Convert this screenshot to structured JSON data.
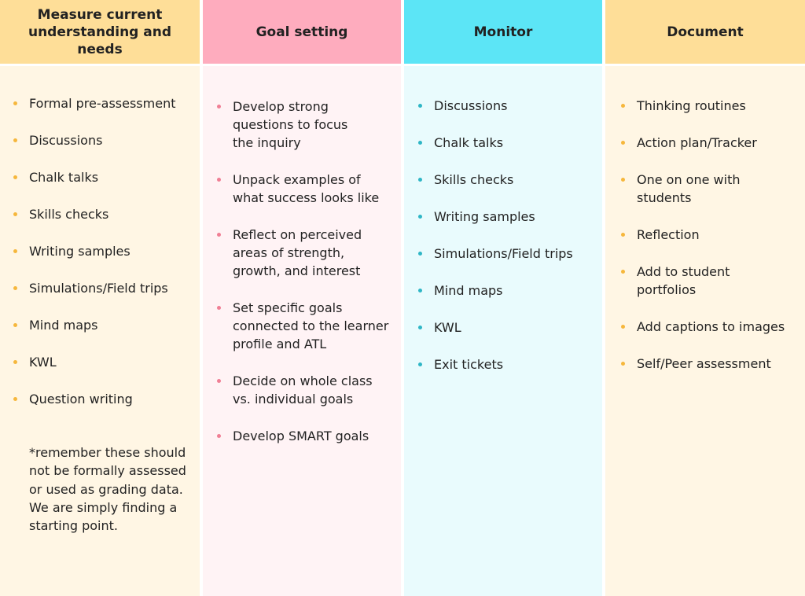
{
  "colors": {
    "col1_header": "#FEDE98",
    "col1_body": "#FFF6E4",
    "col2_header": "#FEACBE",
    "col2_body": "#FFF3F5",
    "col3_header": "#5CE5F6",
    "col3_body": "#E9FBFD",
    "col4_header": "#FEDE98",
    "col4_body": "#FFF6E4",
    "bullet_orange": "#F6B73C",
    "bullet_pink": "#F07F95",
    "bullet_teal": "#2FB6C6"
  },
  "columns": [
    {
      "title": "Measure current understanding and needs",
      "items": [
        "Formal pre-assessment",
        "Discussions",
        "Chalk talks",
        "Skills checks",
        "Writing samples",
        "Simulations/Field trips",
        "Mind maps",
        "KWL",
        "Question writing"
      ],
      "note": "*remember these should not be formally assessed or used as grading data. We are simply finding a starting point."
    },
    {
      "title": "Goal setting",
      "items": [
        "Develop  strong questions to focus the inquiry",
        "Unpack examples of what success looks like",
        "Reflect on perceived areas of strength, growth, and interest",
        "Set specific goals connected to the learner profile and ATL",
        "Decide on whole class vs. individual goals",
        "Develop SMART goals"
      ]
    },
    {
      "title": "Monitor",
      "items": [
        "Discussions",
        "Chalk talks",
        "Skills checks",
        "Writing samples",
        "Simulations/Field trips",
        "Mind maps",
        "KWL",
        "Exit tickets"
      ]
    },
    {
      "title": "Document",
      "items": [
        "Thinking routines",
        "Action plan/Tracker",
        "One on one with students",
        "Reflection",
        "Add to student portfolios",
        "Add captions to images",
        "Self/Peer assessment"
      ]
    }
  ]
}
